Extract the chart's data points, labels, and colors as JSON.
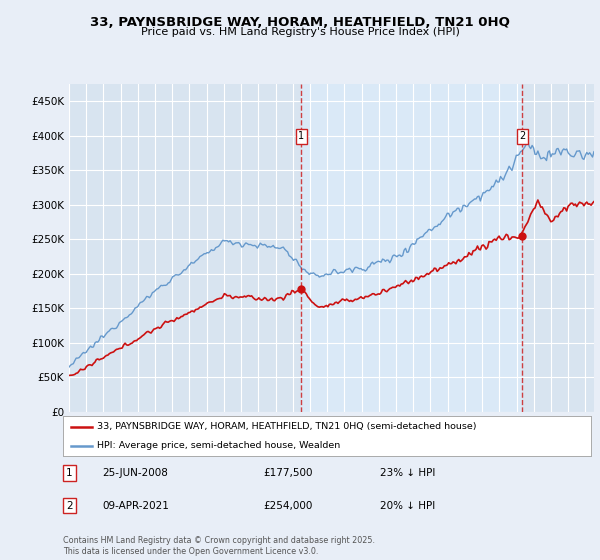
{
  "title": "33, PAYNSBRIDGE WAY, HORAM, HEATHFIELD, TN21 0HQ",
  "subtitle": "Price paid vs. HM Land Registry's House Price Index (HPI)",
  "background_color": "#e8eef7",
  "plot_bg_color": "#d8e4f0",
  "plot_bg_highlight": "#ddeeff",
  "grid_color": "#ffffff",
  "hpi_color": "#6699cc",
  "sale_color": "#cc1111",
  "dashed_color": "#cc2222",
  "ylim": [
    0,
    475000
  ],
  "yticks": [
    0,
    50000,
    100000,
    150000,
    200000,
    250000,
    300000,
    350000,
    400000,
    450000
  ],
  "ytick_labels": [
    "£0",
    "£50K",
    "£100K",
    "£150K",
    "£200K",
    "£250K",
    "£300K",
    "£350K",
    "£400K",
    "£450K"
  ],
  "legend_line1": "33, PAYNSBRIDGE WAY, HORAM, HEATHFIELD, TN21 0HQ (semi-detached house)",
  "legend_line2": "HPI: Average price, semi-detached house, Wealden",
  "annotation1_price": 177500,
  "annotation1_date_str": "25-JUN-2008",
  "annotation2_price": 254000,
  "annotation2_date_str": "09-APR-2021",
  "footer": "Contains HM Land Registry data © Crown copyright and database right 2025.\nThis data is licensed under the Open Government Licence v3.0.",
  "xstart_year": 1995,
  "xend_year": 2025
}
